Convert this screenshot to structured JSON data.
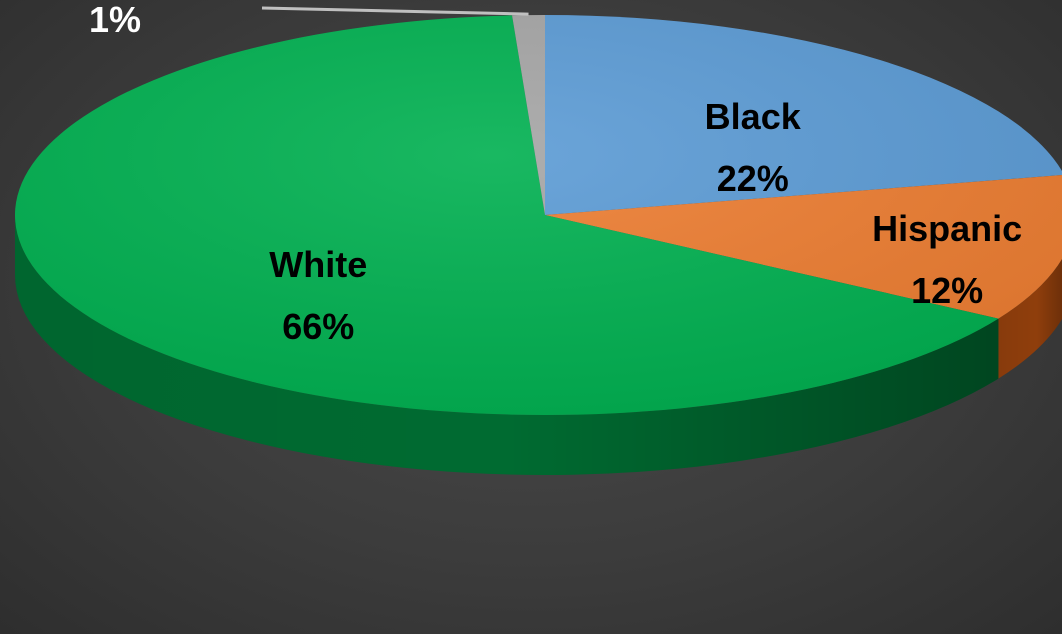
{
  "chart_data": {
    "type": "pie",
    "style": "3d",
    "slices": [
      {
        "label": "Black",
        "value_label": "22%",
        "value": 22,
        "color": "#5b9bd5",
        "side_color": "#2e5f8f"
      },
      {
        "label": "Hispanic",
        "value_label": "12%",
        "value": 12,
        "color": "#ed7d31",
        "side_color": "#8f3e0c"
      },
      {
        "label": "White",
        "value_label": "66%",
        "value": 66,
        "color": "#00b050",
        "side_color": "#006b31"
      },
      {
        "label": "",
        "value_label": "1%",
        "value": 1,
        "color": "#a5a5a5",
        "side_color": "#6a6a6a"
      }
    ],
    "label_color": "#000000",
    "outside_label_color": "#ffffff",
    "leader_line_color": "#c0c0c0"
  }
}
